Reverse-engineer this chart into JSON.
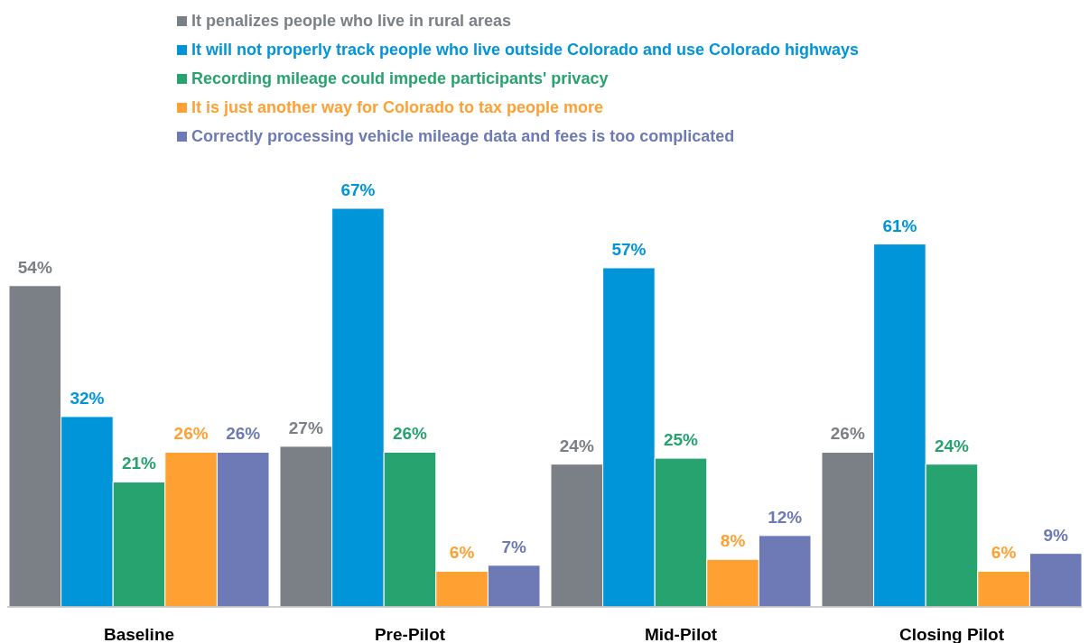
{
  "chart_data": {
    "type": "bar",
    "categories": [
      "Baseline",
      "Pre-Pilot",
      "Mid-Pilot",
      "Closing Pilot"
    ],
    "series": [
      {
        "name": "It penalizes people who live in rural areas",
        "color": "#7a8085",
        "values": [
          54,
          27,
          24,
          26
        ],
        "value_labels": [
          "54%",
          "27%",
          "24%",
          "26%"
        ]
      },
      {
        "name": "It will not properly track people who live outside Colorado and use Colorado highways",
        "color": "#0095d9",
        "values": [
          32,
          67,
          57,
          61
        ],
        "value_labels": [
          "32%",
          "67%",
          "57%",
          "61%"
        ]
      },
      {
        "name": "Recording mileage could impede participants' privacy",
        "color": "#27a36f",
        "values": [
          21,
          26,
          25,
          24
        ],
        "value_labels": [
          "21%",
          "26%",
          "25%",
          "24%"
        ]
      },
      {
        "name": "It is just another way for Colorado to tax people more",
        "color": "#ffa033",
        "values": [
          26,
          6,
          8,
          6
        ],
        "value_labels": [
          "26%",
          "6%",
          "8%",
          "6%"
        ]
      },
      {
        "name": "Correctly processing vehicle mileage data and fees is too complicated",
        "color": "#6d7ab5",
        "values": [
          26,
          7,
          12,
          9
        ],
        "value_labels": [
          "26%",
          "7%",
          "12%",
          "9%"
        ]
      }
    ],
    "legend": "top"
  }
}
